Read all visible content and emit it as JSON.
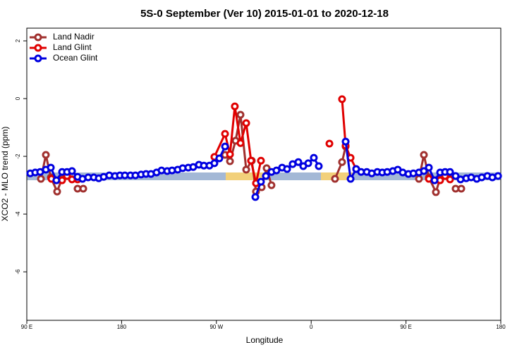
{
  "chart_data": {
    "type": "line",
    "title": "5S-0 September (Ver 10)   2015-01-01 to 2020-12-18",
    "xlabel": "Longitude",
    "ylabel": "XCO2 - MLO trend (ppm)",
    "xlim": [
      90,
      540
    ],
    "ylim": [
      -7.68,
      2.44
    ],
    "xticks": [
      {
        "value": 90,
        "label": "90 E"
      },
      180,
      {
        "value": 270,
        "label": "90 W"
      },
      {
        "value": 360,
        "label": "0"
      },
      {
        "value": 450,
        "label": "90 E"
      },
      180
    ],
    "yticks": [
      2,
      0,
      -2,
      -4,
      -6
    ],
    "legend": "top-left",
    "series": [
      {
        "name": "Land Nadir",
        "color": "#a0302e",
        "x": [
          103.4,
          108.1,
          112.8,
          118.8,
          123.5,
          130,
          138.2,
          143.6,
          200,
          278.2,
          282.9,
          288.2,
          292.9,
          298.3,
          303.6,
          307.6,
          313.0,
          317.7,
          322.3,
          350,
          382.6,
          389.3,
          392.7,
          430,
          462.3,
          467.0,
          471.7,
          478.4,
          482.4,
          490,
          497.1,
          502.5
        ],
        "values": [
          -2.78,
          -1.95,
          -2.73,
          -3.22,
          -2.76,
          null,
          -3.12,
          -3.12,
          null,
          -1.95,
          -2.17,
          -1.46,
          -0.56,
          -2.46,
          -2.15,
          -3.22,
          -3.07,
          -2.41,
          -3.0,
          null,
          -2.78,
          -2.2,
          -1.66,
          null,
          -2.78,
          -1.95,
          -2.73,
          -3.24,
          -2.76,
          null,
          -3.12,
          -3.12
        ]
      },
      {
        "name": "Land Glint",
        "color": "#e00000",
        "x": [
          113.4,
          118.1,
          123.5,
          128.2,
          132.9,
          138.2,
          200,
          268.1,
          278.2,
          282.9,
          287.5,
          292.9,
          298.3,
          302.9,
          307.6,
          312.3,
          345,
          377.3,
          383,
          389.3,
          392.7,
          397.4,
          402.7,
          437,
          471.7,
          477.1,
          482.4,
          487.1,
          491.8
        ],
        "values": [
          -2.78,
          -2.83,
          -2.83,
          -2.68,
          -2.8,
          -2.8,
          null,
          -2.02,
          -1.22,
          -1.93,
          -0.27,
          -1.54,
          -0.85,
          -2.15,
          -2.93,
          -2.15,
          null,
          -1.56,
          null,
          -0.02,
          -1.63,
          -2.05,
          -2.44,
          null,
          -2.78,
          -2.83,
          -2.83,
          -2.68,
          -2.8
        ]
      },
      {
        "name": "Ocean Glint",
        "color": "#0000e0",
        "x": [
          93.3,
          98.0,
          102.7,
          108.1,
          112.8,
          118.1,
          123.5,
          128.2,
          132.9,
          138.2,
          142.9,
          148.3,
          153.6,
          158.3,
          163.0,
          168.3,
          173.7,
          178.4,
          183.1,
          188.4,
          193.1,
          198.5,
          203.2,
          207.9,
          213.2,
          217.9,
          223.3,
          227.9,
          233.3,
          238.0,
          243.3,
          248.0,
          253.4,
          258.1,
          263.4,
          268.1,
          272.8,
          278.2,
          290,
          307.0,
          312.3,
          317.0,
          322.3,
          327.0,
          332.4,
          337.1,
          342.4,
          347.8,
          352.5,
          357.2,
          362.5,
          367.2,
          380,
          392.7,
          397.4,
          402.7,
          407.4,
          412.8,
          417.5,
          422.8,
          427.5,
          432.2,
          437.5,
          442.2,
          446.9,
          452.3,
          457.0,
          462.3,
          467.0,
          471.7,
          477.1,
          482.4,
          487.1,
          491.8,
          497.1,
          501.8,
          507.2,
          511.9,
          517.2,
          521.9,
          527.3,
          532.0,
          537.4
        ],
        "values": [
          -2.59,
          -2.56,
          -2.54,
          -2.46,
          -2.39,
          -2.83,
          -2.54,
          -2.54,
          -2.51,
          -2.71,
          -2.78,
          -2.73,
          -2.73,
          -2.76,
          -2.71,
          -2.66,
          -2.68,
          -2.66,
          -2.66,
          -2.66,
          -2.66,
          -2.63,
          -2.61,
          -2.61,
          -2.56,
          -2.49,
          -2.51,
          -2.49,
          -2.46,
          -2.41,
          -2.39,
          -2.37,
          -2.29,
          -2.32,
          -2.32,
          -2.24,
          -2.07,
          -1.66,
          null,
          -3.41,
          -2.88,
          -2.68,
          -2.54,
          -2.49,
          -2.39,
          -2.44,
          -2.27,
          -2.2,
          -2.34,
          -2.24,
          -2.05,
          -2.34,
          null,
          -1.49,
          -2.78,
          -2.44,
          -2.54,
          -2.54,
          -2.59,
          -2.54,
          -2.56,
          -2.54,
          -2.51,
          -2.46,
          -2.56,
          -2.61,
          -2.59,
          -2.56,
          -2.51,
          -2.39,
          -2.83,
          -2.56,
          -2.54,
          -2.54,
          -2.68,
          -2.8,
          -2.76,
          -2.73,
          -2.78,
          -2.73,
          -2.68,
          -2.73,
          -2.68
        ]
      }
    ]
  }
}
